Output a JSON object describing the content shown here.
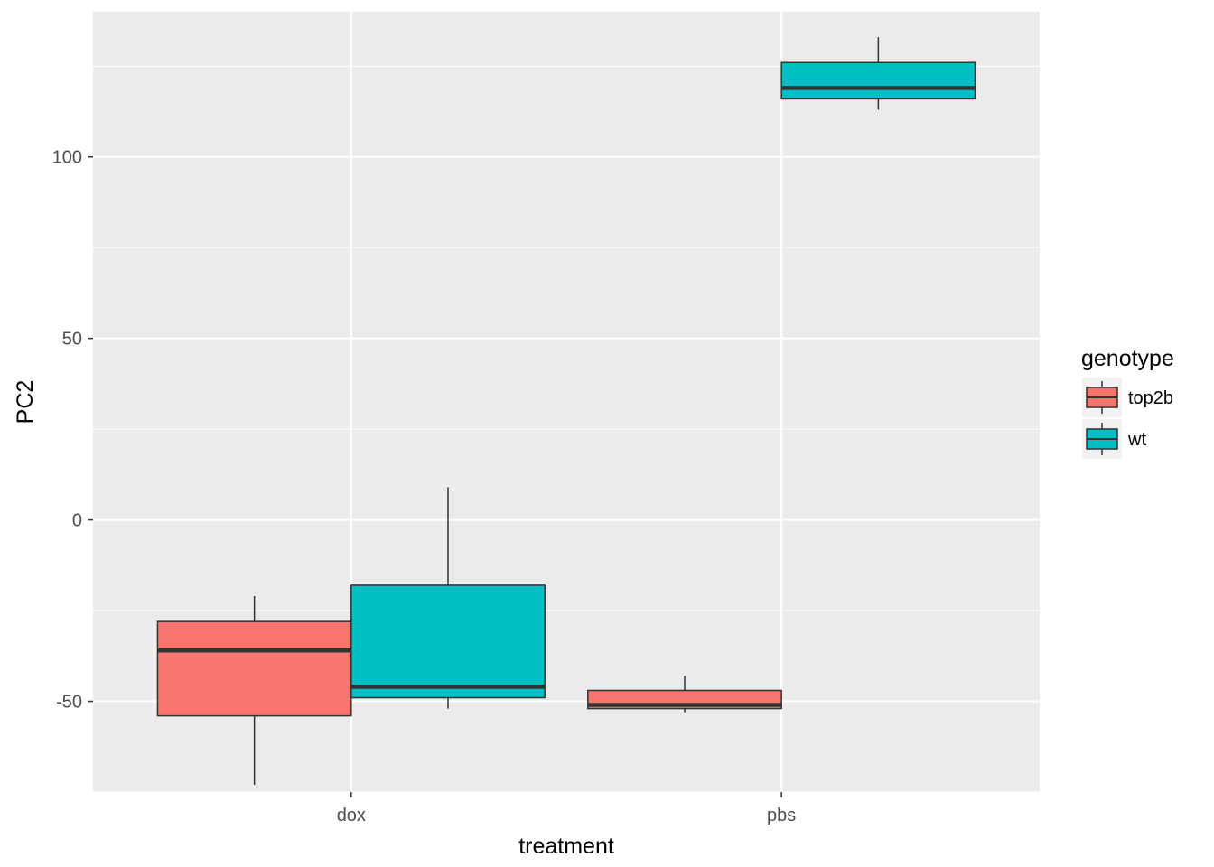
{
  "chart_data": {
    "type": "boxplot",
    "xlabel": "treatment",
    "ylabel": "PC2",
    "categories": [
      "dox",
      "pbs"
    ],
    "ylim": [
      -75,
      140
    ],
    "yticks": [
      -50,
      0,
      50,
      100
    ],
    "grid": true,
    "legend": {
      "title": "genotype",
      "position": "right"
    },
    "series": [
      {
        "name": "top2b",
        "color": "#F8766D",
        "boxes": [
          {
            "category": "dox",
            "min": -73,
            "q1": -54,
            "median": -36,
            "q3": -28,
            "max": -21
          },
          {
            "category": "pbs",
            "min": -53,
            "q1": -52,
            "median": -51,
            "q3": -47,
            "max": -43
          }
        ]
      },
      {
        "name": "wt",
        "color": "#00BFC4",
        "boxes": [
          {
            "category": "dox",
            "min": -52,
            "q1": -49,
            "median": -46,
            "q3": -18,
            "max": 9
          },
          {
            "category": "pbs",
            "min": 113,
            "q1": 116,
            "median": 119,
            "q3": 126,
            "max": 133
          }
        ]
      }
    ]
  }
}
